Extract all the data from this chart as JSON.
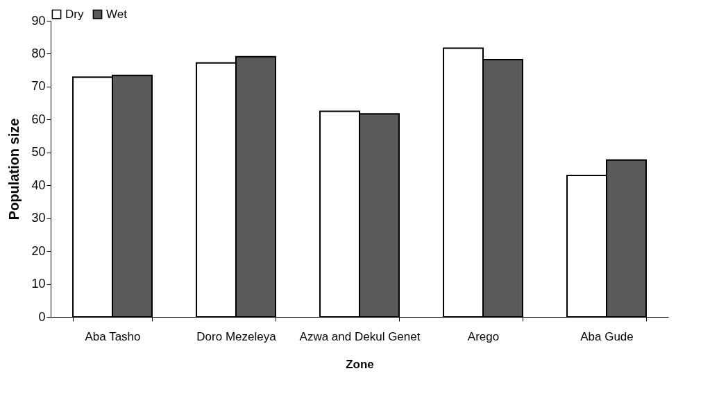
{
  "chart_data": {
    "type": "bar",
    "xlabel": "Zone",
    "ylabel": "Population size",
    "categories": [
      "Aba Tasho",
      "Doro Mezeleya",
      "Azwa and Dekul Genet",
      "Arego",
      "Aba Gude"
    ],
    "series": [
      {
        "name": "Dry",
        "color": "#ffffff",
        "values": [
          72.9,
          77.2,
          62.5,
          81.7,
          43.0
        ]
      },
      {
        "name": "Wet",
        "color": "#5a5a5a",
        "values": [
          73.4,
          79.1,
          61.7,
          78.2,
          47.7
        ]
      }
    ],
    "ylim": [
      0,
      90
    ],
    "yticks": [
      0,
      10,
      20,
      30,
      40,
      50,
      60,
      70,
      80,
      90
    ],
    "grid": false,
    "legend": "top"
  }
}
